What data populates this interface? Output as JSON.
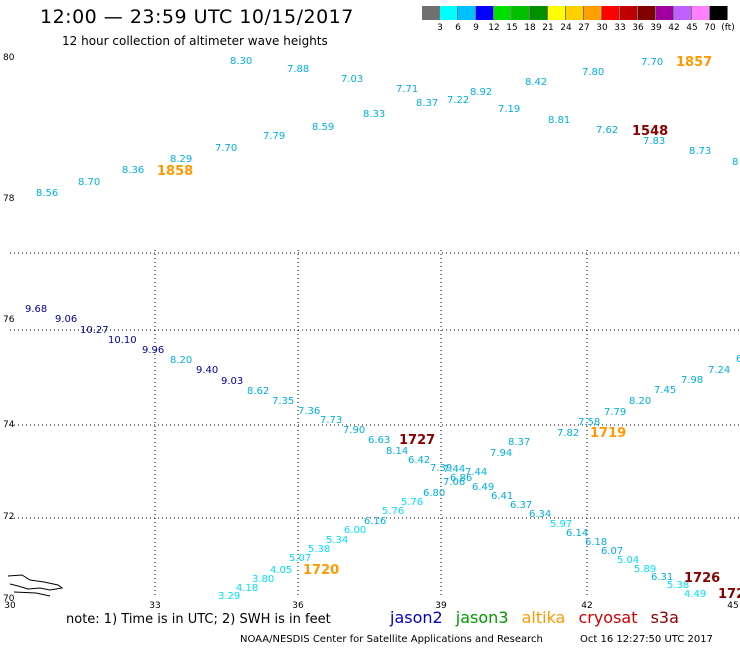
{
  "header": {
    "title": "12:00 — 23:59 UTC 10/15/2017",
    "subtitle": "12 hour collection of altimeter wave heights"
  },
  "colorbar": {
    "labels": [
      "3",
      "6",
      "9",
      "12",
      "15",
      "18",
      "21",
      "24",
      "27",
      "30",
      "33",
      "36",
      "39",
      "42",
      "45",
      "70",
      "(ft)"
    ],
    "colors": [
      "#707070",
      "#00ffff",
      "#00c0ff",
      "#0000ff",
      "#00e000",
      "#00c000",
      "#009000",
      "#ffff00",
      "#ffd000",
      "#ffa000",
      "#ff0000",
      "#c00000",
      "#800000",
      "#a000a0",
      "#c060ff",
      "#ff80ff",
      "#000000"
    ]
  },
  "colors": {
    "jason2": "#0000cc",
    "jason3": "#009900",
    "altika": "#ff9900",
    "cryosat": "#cc0000",
    "s3a": "#880000",
    "cyan": "#00b0e0",
    "lightcyan": "#00e0ff",
    "navy": "#0000a0",
    "grid": "#000000"
  },
  "map": {
    "lon_range": [
      30,
      45
    ],
    "lat_range": [
      70,
      80
    ],
    "x_ticks": [
      "30",
      "33",
      "36",
      "39",
      "42",
      "45"
    ],
    "y_ticks": [
      "70",
      "72",
      "74",
      "76",
      "78",
      "80"
    ],
    "coastline": "land-outline",
    "tracks": [
      {
        "id": "north-track",
        "points": [
          {
            "v": "8.56",
            "c": "cyan"
          },
          {
            "v": "8.70",
            "c": "cyan"
          },
          {
            "v": "8.36",
            "c": "cyan"
          },
          {
            "v": "8.29",
            "c": "cyan"
          },
          {
            "v": "7.70",
            "c": "cyan"
          },
          {
            "v": "7.79",
            "c": "cyan"
          },
          {
            "v": "8.59",
            "c": "cyan"
          },
          {
            "v": "8.33",
            "c": "cyan"
          },
          {
            "v": "8.37",
            "c": "cyan"
          },
          {
            "v": "7.22",
            "c": "cyan"
          },
          {
            "v": "8.92",
            "c": "cyan"
          },
          {
            "v": "7.19",
            "c": "cyan"
          },
          {
            "v": "8.81",
            "c": "cyan"
          },
          {
            "v": "7.62",
            "c": "cyan"
          },
          {
            "v": "7.83",
            "c": "cyan"
          },
          {
            "v": "8.73",
            "c": "cyan"
          },
          {
            "v": "8",
            "c": "cyan"
          },
          {
            "v": "8.30",
            "c": "cyan"
          },
          {
            "v": "7.88",
            "c": "cyan"
          },
          {
            "v": "7.03",
            "c": "cyan"
          },
          {
            "v": "7.71",
            "c": "cyan"
          },
          {
            "v": "8.42",
            "c": "cyan"
          },
          {
            "v": "7.80",
            "c": "cyan"
          },
          {
            "v": "7.70",
            "c": "cyan"
          }
        ]
      },
      {
        "id": "descending-track",
        "points": [
          {
            "v": "9.68",
            "c": "navy"
          },
          {
            "v": "9.06",
            "c": "navy"
          },
          {
            "v": "10.27",
            "c": "navy"
          },
          {
            "v": "10.10",
            "c": "navy"
          },
          {
            "v": "9.96",
            "c": "navy"
          },
          {
            "v": "8.20",
            "c": "cyan"
          },
          {
            "v": "9.40",
            "c": "navy"
          },
          {
            "v": "9.03",
            "c": "navy"
          },
          {
            "v": "8.62",
            "c": "cyan"
          },
          {
            "v": "7.35",
            "c": "cyan"
          },
          {
            "v": "7.36",
            "c": "cyan"
          },
          {
            "v": "7.73",
            "c": "cyan"
          },
          {
            "v": "7.90",
            "c": "cyan"
          },
          {
            "v": "6.63",
            "c": "cyan"
          },
          {
            "v": "8.14",
            "c": "cyan"
          },
          {
            "v": "6.42",
            "c": "cyan"
          },
          {
            "v": "7.39",
            "c": "cyan"
          },
          {
            "v": "6.86",
            "c": "cyan"
          },
          {
            "v": "7.06",
            "c": "cyan"
          },
          {
            "v": "6.49",
            "c": "cyan"
          },
          {
            "v": "6.41",
            "c": "cyan"
          },
          {
            "v": "6.37",
            "c": "cyan"
          },
          {
            "v": "6.34",
            "c": "cyan"
          },
          {
            "v": "5.97",
            "c": "lightcyan"
          },
          {
            "v": "6.14",
            "c": "cyan"
          },
          {
            "v": "6.18",
            "c": "cyan"
          },
          {
            "v": "6.07",
            "c": "cyan"
          },
          {
            "v": "5.04",
            "c": "lightcyan"
          },
          {
            "v": "5.89",
            "c": "lightcyan"
          },
          {
            "v": "6.31",
            "c": "cyan"
          },
          {
            "v": "5.38",
            "c": "lightcyan"
          },
          {
            "v": "4.49",
            "c": "lightcyan"
          }
        ]
      },
      {
        "id": "ascending-track",
        "points": [
          {
            "v": "3.29",
            "c": "lightcyan"
          },
          {
            "v": "4.18",
            "c": "lightcyan"
          },
          {
            "v": "3.80",
            "c": "lightcyan"
          },
          {
            "v": "4.05",
            "c": "lightcyan"
          },
          {
            "v": "5.07",
            "c": "lightcyan"
          },
          {
            "v": "5.38",
            "c": "lightcyan"
          },
          {
            "v": "5.34",
            "c": "lightcyan"
          },
          {
            "v": "6.00",
            "c": "lightcyan"
          },
          {
            "v": "6.16",
            "c": "cyan"
          },
          {
            "v": "5.76",
            "c": "lightcyan"
          },
          {
            "v": "5.76",
            "c": "lightcyan"
          },
          {
            "v": "6.80",
            "c": "cyan"
          },
          {
            "v": "7.44",
            "c": "cyan"
          },
          {
            "v": "7.44",
            "c": "cyan"
          },
          {
            "v": "7.94",
            "c": "cyan"
          },
          {
            "v": "8.37",
            "c": "cyan"
          },
          {
            "v": "7.82",
            "c": "cyan"
          },
          {
            "v": "7.58",
            "c": "cyan"
          },
          {
            "v": "7.79",
            "c": "cyan"
          },
          {
            "v": "8.20",
            "c": "cyan"
          },
          {
            "v": "7.45",
            "c": "cyan"
          },
          {
            "v": "7.98",
            "c": "cyan"
          },
          {
            "v": "7.24",
            "c": "cyan"
          },
          {
            "v": "6",
            "c": "cyan"
          }
        ]
      }
    ],
    "pass_times": [
      {
        "v": "1858",
        "c": "altika"
      },
      {
        "v": "1857",
        "c": "altika"
      },
      {
        "v": "1548",
        "c": "s3a"
      },
      {
        "v": "1727",
        "c": "s3a"
      },
      {
        "v": "1719",
        "c": "altika"
      },
      {
        "v": "1720",
        "c": "altika"
      },
      {
        "v": "1726",
        "c": "s3a"
      },
      {
        "v": "172",
        "c": "s3a"
      }
    ]
  },
  "footer": {
    "note": "note:  1) Time is in UTC;  2) SWH is in feet",
    "legend": [
      "jason2",
      "jason3",
      "altika",
      "cryosat",
      "s3a"
    ],
    "credit": "NOAA/NESDIS Center for Satellite Applications and Research",
    "timestamp": "Oct 16 12:27:50 UTC 2017"
  }
}
